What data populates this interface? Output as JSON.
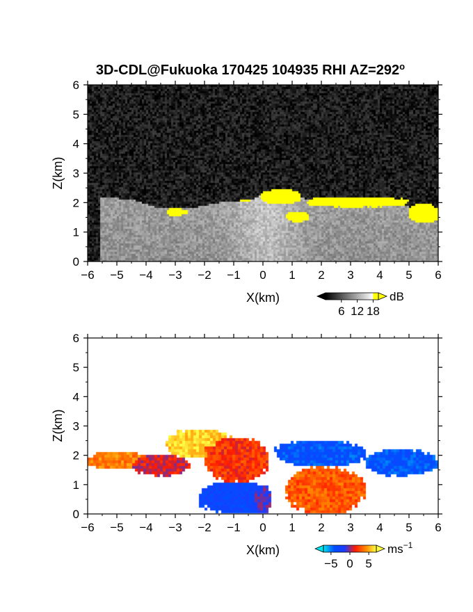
{
  "title": "3D-CDL@Fukuoka 170425 104935 RHI AZ=292",
  "title_sup": "o",
  "chart_data": [
    {
      "type": "heatmap",
      "panel": "reflectivity",
      "xlabel": "X(km)",
      "ylabel": "Z(km)",
      "xlim": [
        -6,
        6
      ],
      "ylim": [
        0,
        6
      ],
      "x_ticks": [
        "−6",
        "−5",
        "−4",
        "−3",
        "−2",
        "−1",
        "0",
        "1",
        "2",
        "3",
        "4",
        "5",
        "6"
      ],
      "y_ticks": [
        "0",
        "1",
        "2",
        "3",
        "4",
        "5",
        "6"
      ],
      "colorbar": {
        "unit": "dB",
        "ticks": [
          "6",
          "12",
          "18"
        ],
        "range": [
          0,
          20
        ],
        "colors": [
          "#000000",
          "#ffffff",
          "#ffff00"
        ]
      },
      "background_level": 2,
      "echo_region": {
        "top_height_km": [
          {
            "x": -5.6,
            "z": 2.2
          },
          {
            "x": -4.5,
            "z": 2.1
          },
          {
            "x": -3.5,
            "z": 1.8
          },
          {
            "x": -2.5,
            "z": 1.8
          },
          {
            "x": -1.5,
            "z": 2.0
          },
          {
            "x": -0.5,
            "z": 2.05
          },
          {
            "x": 0.3,
            "z": 2.4
          },
          {
            "x": 1.0,
            "z": 2.2
          },
          {
            "x": 2.0,
            "z": 2.05
          },
          {
            "x": 3.0,
            "z": 2.05
          },
          {
            "x": 4.0,
            "z": 2.0
          },
          {
            "x": 5.0,
            "z": 1.85
          },
          {
            "x": 6.0,
            "z": 1.5
          }
        ],
        "interior_level": 11,
        "core_level": 14
      },
      "strong_echo_layers": [
        {
          "x": [
            -3.3,
            -2.6
          ],
          "z": [
            1.55,
            1.8
          ],
          "level": 19
        },
        {
          "x": [
            -0.8,
            -0.4
          ],
          "z": [
            2.0,
            2.1
          ],
          "level": 19
        },
        {
          "x": [
            -0.1,
            1.3
          ],
          "z": [
            1.95,
            2.45
          ],
          "level": 19
        },
        {
          "x": [
            0.8,
            1.6
          ],
          "z": [
            1.35,
            1.7
          ],
          "level": 19
        },
        {
          "x": [
            1.5,
            5.0
          ],
          "z": [
            1.85,
            2.2
          ],
          "level": 19
        },
        {
          "x": [
            5.0,
            6.0
          ],
          "z": [
            1.3,
            1.95
          ],
          "level": 19
        }
      ]
    },
    {
      "type": "heatmap",
      "panel": "radial_velocity",
      "xlabel": "X(km)",
      "ylabel": "Z(km)",
      "xlim": [
        -6,
        6
      ],
      "ylim": [
        0,
        6
      ],
      "x_ticks": [
        "−6",
        "−5",
        "−4",
        "−3",
        "−2",
        "−1",
        "0",
        "1",
        "2",
        "3",
        "4",
        "5",
        "6"
      ],
      "y_ticks": [
        "0",
        "1",
        "2",
        "3",
        "4",
        "5",
        "6"
      ],
      "colorbar": {
        "unit": "ms",
        "unit_sup": "−1",
        "ticks": [
          "−5",
          "0",
          "5"
        ],
        "range": [
          -7,
          7
        ],
        "colors": [
          "#00e5ee",
          "#0050ff",
          "#ff0000",
          "#ffff00"
        ]
      },
      "regions": [
        {
          "x": [
            -6.0,
            -4.0
          ],
          "z": [
            1.5,
            2.15
          ],
          "velocity": 4
        },
        {
          "x": [
            -4.5,
            -2.5
          ],
          "z": [
            1.3,
            2.0
          ],
          "velocity": 1
        },
        {
          "x": [
            -3.3,
            -1.0
          ],
          "z": [
            1.9,
            2.9
          ],
          "velocity": 6
        },
        {
          "x": [
            -2.0,
            0.2
          ],
          "z": [
            1.1,
            2.6
          ],
          "velocity": 2
        },
        {
          "x": [
            -2.2,
            0.3
          ],
          "z": [
            0.0,
            1.1
          ],
          "velocity": -3
        },
        {
          "x": [
            0.4,
            3.5
          ],
          "z": [
            1.6,
            2.5
          ],
          "velocity": -4
        },
        {
          "x": [
            3.5,
            6.0
          ],
          "z": [
            1.3,
            2.2
          ],
          "velocity": -4
        },
        {
          "x": [
            0.8,
            3.5
          ],
          "z": [
            0.0,
            1.6
          ],
          "velocity": 3
        },
        {
          "x": [
            -0.3,
            0.3
          ],
          "z": [
            0.0,
            1.0
          ],
          "velocity": -1
        }
      ]
    }
  ]
}
